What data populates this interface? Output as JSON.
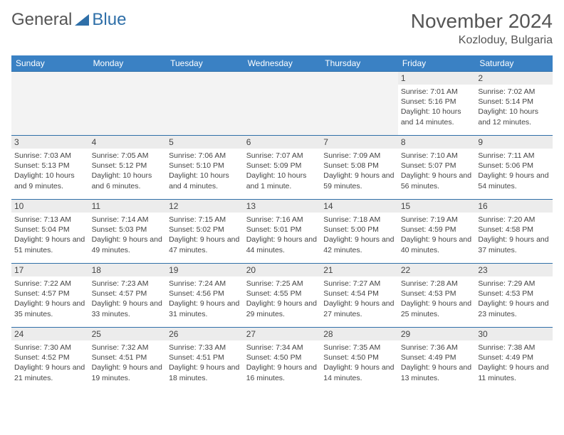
{
  "logo": {
    "text_a": "General",
    "text_b": "Blue"
  },
  "title": "November 2024",
  "location": "Kozloduy, Bulgaria",
  "calendar": {
    "type": "table",
    "header_bg": "#3a81c4",
    "header_fg": "#ffffff",
    "border_color": "#2f6fa8",
    "daynum_bg": "#ececec",
    "empty_bg": "#f3f3f3",
    "text_color": "#444444",
    "font_size_header": 12,
    "font_size_daynum": 12,
    "font_size_body": 10.5,
    "columns": [
      "Sunday",
      "Monday",
      "Tuesday",
      "Wednesday",
      "Thursday",
      "Friday",
      "Saturday"
    ],
    "weeks": [
      [
        null,
        null,
        null,
        null,
        null,
        {
          "n": "1",
          "sunrise": "7:01 AM",
          "sunset": "5:16 PM",
          "daylight": "10 hours and 14 minutes."
        },
        {
          "n": "2",
          "sunrise": "7:02 AM",
          "sunset": "5:14 PM",
          "daylight": "10 hours and 12 minutes."
        }
      ],
      [
        {
          "n": "3",
          "sunrise": "7:03 AM",
          "sunset": "5:13 PM",
          "daylight": "10 hours and 9 minutes."
        },
        {
          "n": "4",
          "sunrise": "7:05 AM",
          "sunset": "5:12 PM",
          "daylight": "10 hours and 6 minutes."
        },
        {
          "n": "5",
          "sunrise": "7:06 AM",
          "sunset": "5:10 PM",
          "daylight": "10 hours and 4 minutes."
        },
        {
          "n": "6",
          "sunrise": "7:07 AM",
          "sunset": "5:09 PM",
          "daylight": "10 hours and 1 minute."
        },
        {
          "n": "7",
          "sunrise": "7:09 AM",
          "sunset": "5:08 PM",
          "daylight": "9 hours and 59 minutes."
        },
        {
          "n": "8",
          "sunrise": "7:10 AM",
          "sunset": "5:07 PM",
          "daylight": "9 hours and 56 minutes."
        },
        {
          "n": "9",
          "sunrise": "7:11 AM",
          "sunset": "5:06 PM",
          "daylight": "9 hours and 54 minutes."
        }
      ],
      [
        {
          "n": "10",
          "sunrise": "7:13 AM",
          "sunset": "5:04 PM",
          "daylight": "9 hours and 51 minutes."
        },
        {
          "n": "11",
          "sunrise": "7:14 AM",
          "sunset": "5:03 PM",
          "daylight": "9 hours and 49 minutes."
        },
        {
          "n": "12",
          "sunrise": "7:15 AM",
          "sunset": "5:02 PM",
          "daylight": "9 hours and 47 minutes."
        },
        {
          "n": "13",
          "sunrise": "7:16 AM",
          "sunset": "5:01 PM",
          "daylight": "9 hours and 44 minutes."
        },
        {
          "n": "14",
          "sunrise": "7:18 AM",
          "sunset": "5:00 PM",
          "daylight": "9 hours and 42 minutes."
        },
        {
          "n": "15",
          "sunrise": "7:19 AM",
          "sunset": "4:59 PM",
          "daylight": "9 hours and 40 minutes."
        },
        {
          "n": "16",
          "sunrise": "7:20 AM",
          "sunset": "4:58 PM",
          "daylight": "9 hours and 37 minutes."
        }
      ],
      [
        {
          "n": "17",
          "sunrise": "7:22 AM",
          "sunset": "4:57 PM",
          "daylight": "9 hours and 35 minutes."
        },
        {
          "n": "18",
          "sunrise": "7:23 AM",
          "sunset": "4:57 PM",
          "daylight": "9 hours and 33 minutes."
        },
        {
          "n": "19",
          "sunrise": "7:24 AM",
          "sunset": "4:56 PM",
          "daylight": "9 hours and 31 minutes."
        },
        {
          "n": "20",
          "sunrise": "7:25 AM",
          "sunset": "4:55 PM",
          "daylight": "9 hours and 29 minutes."
        },
        {
          "n": "21",
          "sunrise": "7:27 AM",
          "sunset": "4:54 PM",
          "daylight": "9 hours and 27 minutes."
        },
        {
          "n": "22",
          "sunrise": "7:28 AM",
          "sunset": "4:53 PM",
          "daylight": "9 hours and 25 minutes."
        },
        {
          "n": "23",
          "sunrise": "7:29 AM",
          "sunset": "4:53 PM",
          "daylight": "9 hours and 23 minutes."
        }
      ],
      [
        {
          "n": "24",
          "sunrise": "7:30 AM",
          "sunset": "4:52 PM",
          "daylight": "9 hours and 21 minutes."
        },
        {
          "n": "25",
          "sunrise": "7:32 AM",
          "sunset": "4:51 PM",
          "daylight": "9 hours and 19 minutes."
        },
        {
          "n": "26",
          "sunrise": "7:33 AM",
          "sunset": "4:51 PM",
          "daylight": "9 hours and 18 minutes."
        },
        {
          "n": "27",
          "sunrise": "7:34 AM",
          "sunset": "4:50 PM",
          "daylight": "9 hours and 16 minutes."
        },
        {
          "n": "28",
          "sunrise": "7:35 AM",
          "sunset": "4:50 PM",
          "daylight": "9 hours and 14 minutes."
        },
        {
          "n": "29",
          "sunrise": "7:36 AM",
          "sunset": "4:49 PM",
          "daylight": "9 hours and 13 minutes."
        },
        {
          "n": "30",
          "sunrise": "7:38 AM",
          "sunset": "4:49 PM",
          "daylight": "9 hours and 11 minutes."
        }
      ]
    ]
  },
  "labels": {
    "sunrise": "Sunrise: ",
    "sunset": "Sunset: ",
    "daylight": "Daylight: "
  }
}
